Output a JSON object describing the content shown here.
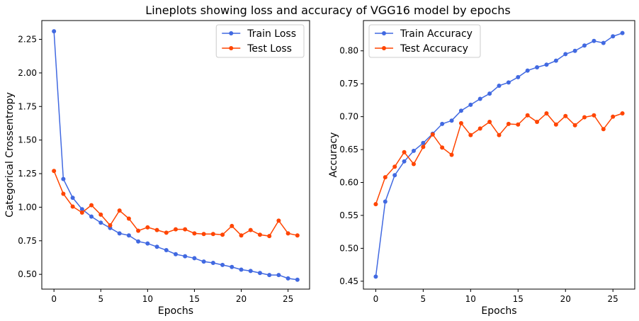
{
  "figure": {
    "suptitle": "Lineplots showing loss and accuracy of VGG16 model by epochs"
  },
  "colors": {
    "train": "#4169e1",
    "test": "#ff4500"
  },
  "chart_data": [
    {
      "type": "line",
      "title": "",
      "xlabel": "Epochs",
      "ylabel": "Categorical Crossentropy",
      "xlim": [
        -1.3,
        27.3
      ],
      "ylim": [
        0.39,
        2.39
      ],
      "xticks": [
        0,
        5,
        10,
        15,
        20,
        25
      ],
      "xtick_labels": [
        "0",
        "5",
        "10",
        "15",
        "20",
        "25"
      ],
      "yticks": [
        0.5,
        0.75,
        1.0,
        1.25,
        1.5,
        1.75,
        2.0,
        2.25
      ],
      "ytick_labels": [
        "0.50",
        "0.75",
        "1.00",
        "1.25",
        "1.50",
        "1.75",
        "2.00",
        "2.25"
      ],
      "grid": false,
      "legend_position": "top-right",
      "x": [
        0,
        1,
        2,
        3,
        4,
        5,
        6,
        7,
        8,
        9,
        10,
        11,
        12,
        13,
        14,
        15,
        16,
        17,
        18,
        19,
        20,
        21,
        22,
        23,
        24,
        25,
        26
      ],
      "series": [
        {
          "name": "Train Loss",
          "color": "#4169e1",
          "values": [
            2.31,
            1.21,
            1.07,
            0.985,
            0.93,
            0.885,
            0.845,
            0.805,
            0.79,
            0.745,
            0.73,
            0.705,
            0.68,
            0.65,
            0.635,
            0.62,
            0.595,
            0.585,
            0.57,
            0.555,
            0.535,
            0.525,
            0.51,
            0.495,
            0.495,
            0.47,
            0.46
          ]
        },
        {
          "name": "Test Loss",
          "color": "#ff4500",
          "values": [
            1.27,
            1.1,
            1.005,
            0.96,
            1.015,
            0.945,
            0.865,
            0.975,
            0.915,
            0.825,
            0.85,
            0.83,
            0.81,
            0.835,
            0.835,
            0.805,
            0.8,
            0.8,
            0.795,
            0.86,
            0.79,
            0.83,
            0.795,
            0.785,
            0.9,
            0.805,
            0.79
          ]
        }
      ]
    },
    {
      "type": "line",
      "title": "",
      "xlabel": "Epochs",
      "ylabel": "Accuracy",
      "xlim": [
        -1.3,
        27.3
      ],
      "ylim": [
        0.438,
        0.846
      ],
      "xticks": [
        0,
        5,
        10,
        15,
        20,
        25
      ],
      "xtick_labels": [
        "0",
        "5",
        "10",
        "15",
        "20",
        "25"
      ],
      "yticks": [
        0.45,
        0.5,
        0.55,
        0.6,
        0.65,
        0.7,
        0.75,
        0.8
      ],
      "ytick_labels": [
        "0.45",
        "0.50",
        "0.55",
        "0.60",
        "0.65",
        "0.70",
        "0.75",
        "0.80"
      ],
      "grid": false,
      "legend_position": "top-left",
      "x": [
        0,
        1,
        2,
        3,
        4,
        5,
        6,
        7,
        8,
        9,
        10,
        11,
        12,
        13,
        14,
        15,
        16,
        17,
        18,
        19,
        20,
        21,
        22,
        23,
        24,
        25,
        26
      ],
      "series": [
        {
          "name": "Train Accuracy",
          "color": "#4169e1",
          "values": [
            0.457,
            0.571,
            0.611,
            0.632,
            0.648,
            0.66,
            0.674,
            0.689,
            0.694,
            0.709,
            0.718,
            0.727,
            0.735,
            0.747,
            0.752,
            0.76,
            0.77,
            0.775,
            0.779,
            0.785,
            0.795,
            0.8,
            0.808,
            0.815,
            0.812,
            0.822,
            0.827
          ]
        },
        {
          "name": "Test Accuracy",
          "color": "#ff4500",
          "values": [
            0.567,
            0.608,
            0.624,
            0.646,
            0.628,
            0.654,
            0.673,
            0.653,
            0.642,
            0.69,
            0.672,
            0.682,
            0.692,
            0.672,
            0.689,
            0.688,
            0.702,
            0.692,
            0.705,
            0.688,
            0.701,
            0.687,
            0.699,
            0.702,
            0.681,
            0.7,
            0.705
          ]
        }
      ]
    }
  ]
}
